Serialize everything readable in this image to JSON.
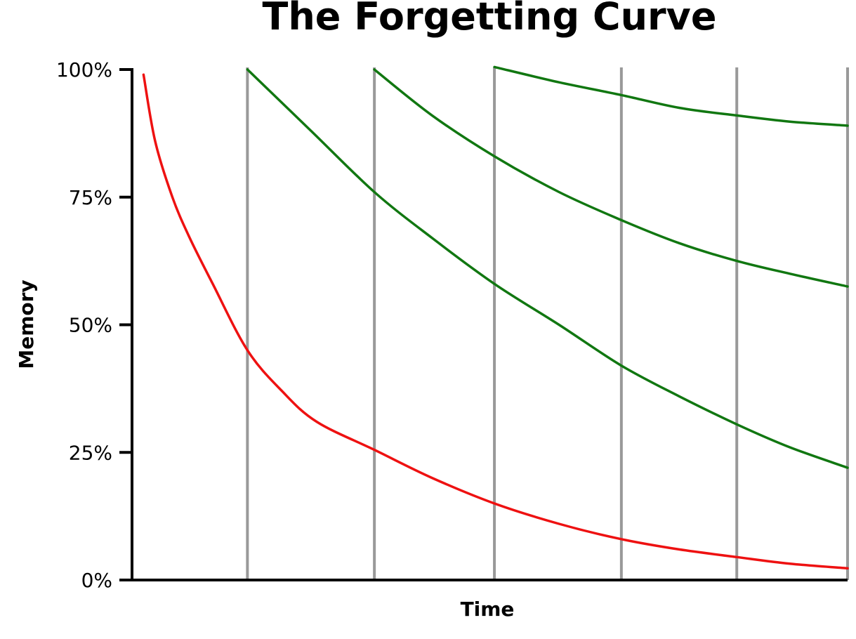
{
  "chart_data": {
    "type": "line",
    "title": "The Forgetting Curve",
    "xlabel": "Time",
    "ylabel": "Memory",
    "y_ticks": [
      {
        "value": 0,
        "label": "0%"
      },
      {
        "value": 25,
        "label": "25%"
      },
      {
        "value": 50,
        "label": "50%"
      },
      {
        "value": 75,
        "label": "75%"
      },
      {
        "value": 100,
        "label": "100%"
      }
    ],
    "ylim": [
      0,
      100
    ],
    "xlim": [
      0,
      6.2
    ],
    "x_ticks": [],
    "review_points": [
      1,
      2.1,
      3.14,
      4.24,
      5.24,
      6.2
    ],
    "grid": {
      "vertical": true,
      "horizontal": false
    },
    "colors": {
      "initial": "#ee1111",
      "review": "#117711",
      "review_lines": "#999999",
      "axis": "#000000"
    },
    "series": [
      {
        "color": "#ee1111",
        "x": [
          0.1,
          0.2,
          0.35,
          0.5,
          0.7,
          1.0,
          1.3,
          1.6,
          2.1,
          2.6,
          3.14,
          3.7,
          4.24,
          4.74,
          5.24,
          5.7,
          6.2
        ],
        "y": [
          99,
          86,
          75,
          67,
          58,
          45,
          37,
          31,
          25.5,
          20,
          15,
          11,
          8,
          6,
          4.5,
          3.2,
          2.3
        ]
      },
      {
        "color": "#117711",
        "x": [
          1.0,
          1.55,
          2.1,
          2.6,
          3.14,
          3.7,
          4.24,
          4.74,
          5.24,
          5.7,
          6.2
        ],
        "y": [
          100,
          88,
          76,
          67,
          58,
          50,
          42,
          36,
          30.5,
          26,
          22
        ]
      },
      {
        "color": "#117711",
        "x": [
          2.1,
          2.6,
          3.14,
          3.7,
          4.24,
          4.74,
          5.24,
          5.7,
          6.2
        ],
        "y": [
          100,
          91,
          83,
          76,
          70.5,
          66,
          62.5,
          60,
          57.5
        ]
      },
      {
        "color": "#117711",
        "x": [
          3.14,
          3.7,
          4.24,
          4.74,
          5.24,
          5.7,
          6.2
        ],
        "y": [
          100.5,
          97.5,
          95,
          92.5,
          91,
          89.8,
          89
        ]
      }
    ]
  }
}
